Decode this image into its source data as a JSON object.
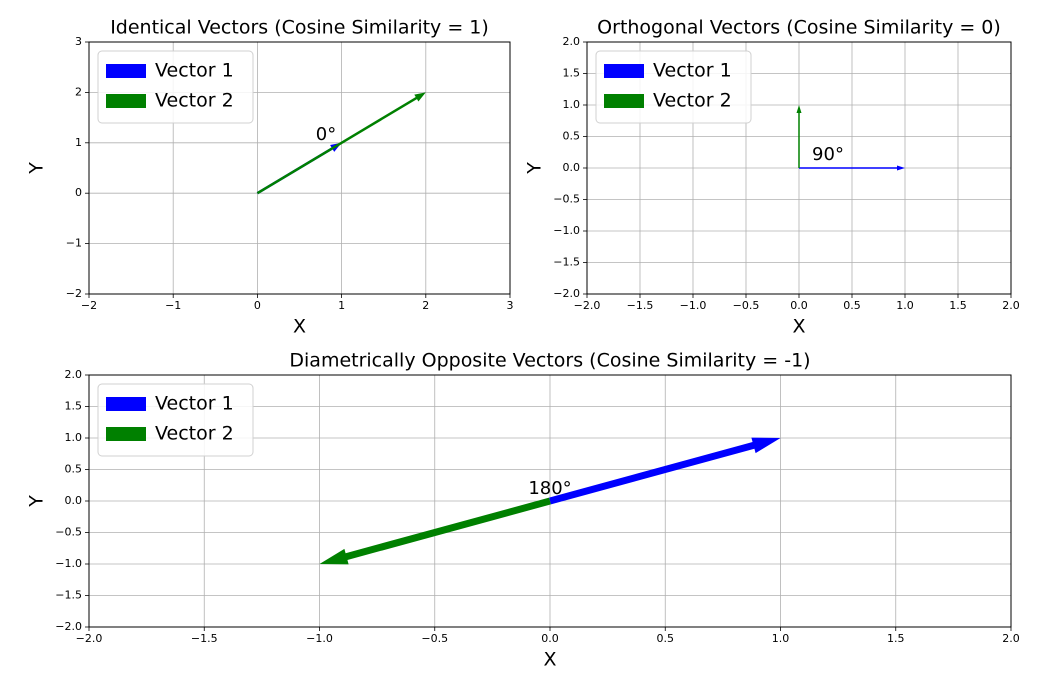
{
  "chart_data": [
    {
      "type": "vector",
      "title": "Identical Vectors (Cosine Similarity = 1)",
      "xlabel": "X",
      "ylabel": "Y",
      "series": [
        {
          "name": "Vector 1",
          "color": "#0000ff",
          "x": [
            1
          ],
          "values": [
            1
          ]
        },
        {
          "name": "Vector 2",
          "color": "#008000",
          "x": [
            2
          ],
          "values": [
            2
          ]
        }
      ],
      "annotation": "0°",
      "xlim": [
        -2,
        3
      ],
      "ylim": [
        -2,
        3
      ],
      "xticks": [
        {
          "value": -2,
          "label": "−2"
        },
        {
          "value": -1,
          "label": "−1"
        },
        0,
        1,
        2,
        3
      ],
      "yticks": [
        {
          "value": -2,
          "label": "−2"
        },
        {
          "value": -1,
          "label": "−1"
        },
        0,
        1,
        2,
        3
      ],
      "grid": true,
      "legend": "upper left"
    },
    {
      "type": "vector",
      "title": "Orthogonal Vectors (Cosine Similarity = 0)",
      "xlabel": "X",
      "ylabel": "Y",
      "series": [
        {
          "name": "Vector 1",
          "color": "#0000ff",
          "x": [
            1
          ],
          "values": [
            0
          ]
        },
        {
          "name": "Vector 2",
          "color": "#008000",
          "x": [
            0
          ],
          "values": [
            1
          ]
        }
      ],
      "annotation": "90°",
      "xlim": [
        -2,
        2
      ],
      "ylim": [
        -2,
        2
      ],
      "xticks": [
        {
          "value": -2,
          "label": "−2.0"
        },
        {
          "value": -1.5,
          "label": "−1.5"
        },
        {
          "value": -1,
          "label": "−1.0"
        },
        {
          "value": -0.5,
          "label": "−0.5"
        },
        {
          "value": 0,
          "label": "0.0"
        },
        0.5,
        {
          "value": 1,
          "label": "1.0"
        },
        1.5,
        {
          "value": 2,
          "label": "2.0"
        }
      ],
      "yticks": [
        {
          "value": -2,
          "label": "−2.0"
        },
        {
          "value": -1.5,
          "label": "−1.5"
        },
        {
          "value": -1,
          "label": "−1.0"
        },
        {
          "value": -0.5,
          "label": "−0.5"
        },
        {
          "value": 0,
          "label": "0.0"
        },
        0.5,
        {
          "value": 1,
          "label": "1.0"
        },
        1.5,
        {
          "value": 2,
          "label": "2.0"
        }
      ],
      "grid": true,
      "legend": "upper left"
    },
    {
      "type": "vector",
      "title": "Diametrically Opposite Vectors (Cosine Similarity = -1)",
      "xlabel": "X",
      "ylabel": "Y",
      "series": [
        {
          "name": "Vector 1",
          "color": "#0000ff",
          "x": [
            1
          ],
          "values": [
            1
          ]
        },
        {
          "name": "Vector 2",
          "color": "#008000",
          "x": [
            -1
          ],
          "values": [
            -1
          ]
        }
      ],
      "annotation": "180°",
      "xlim": [
        -2,
        2
      ],
      "ylim": [
        -2,
        2
      ],
      "xticks": [
        {
          "value": -2,
          "label": "−2.0"
        },
        {
          "value": -1.5,
          "label": "−1.5"
        },
        {
          "value": -1,
          "label": "−1.0"
        },
        {
          "value": -0.5,
          "label": "−0.5"
        },
        {
          "value": 0,
          "label": "0.0"
        },
        0.5,
        {
          "value": 1,
          "label": "1.0"
        },
        1.5,
        {
          "value": 2,
          "label": "2.0"
        }
      ],
      "yticks": [
        {
          "value": -2,
          "label": "−2.0"
        },
        {
          "value": -1.5,
          "label": "−1.5"
        },
        {
          "value": -1,
          "label": "−1.0"
        },
        {
          "value": -0.5,
          "label": "−0.5"
        },
        {
          "value": 0,
          "label": "0.0"
        },
        0.5,
        {
          "value": 1,
          "label": "1.0"
        },
        1.5,
        {
          "value": 2,
          "label": "2.0"
        }
      ],
      "grid": true,
      "legend": "upper left"
    }
  ]
}
